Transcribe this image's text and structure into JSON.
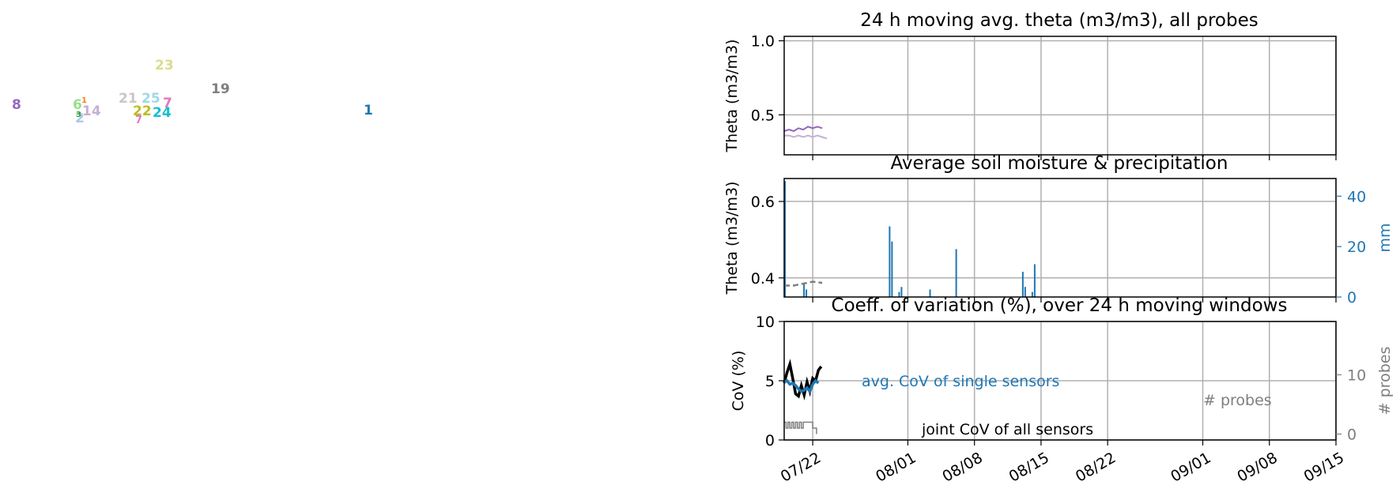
{
  "map": {
    "probes": [
      {
        "id": "8",
        "color": "#9467bd"
      },
      {
        "id": "6",
        "color": "#98df8a"
      },
      {
        "id": "1",
        "color": "#ff7f0e"
      },
      {
        "id": "14",
        "color": "#c5b0d5"
      },
      {
        "id": "2",
        "color": "#aec7e8"
      },
      {
        "id": "3",
        "color": "#2ca02c"
      },
      {
        "id": "21",
        "color": "#c7c7c7"
      },
      {
        "id": "25",
        "color": "#9edae5"
      },
      {
        "id": "7",
        "color": "#e377c2"
      },
      {
        "id": "22",
        "color": "#bcbd22"
      },
      {
        "id": "24",
        "color": "#17becf"
      },
      {
        "id": "23",
        "color": "#dbdb8d"
      },
      {
        "id": "19",
        "color": "#7f7f7f"
      },
      {
        "id": "1",
        "color": "#1f77b4"
      }
    ]
  },
  "chart_data": [
    {
      "type": "line",
      "title": "24 h moving avg. theta (m3/m3), all probes",
      "ylabel": "Theta (m3/m3)",
      "ylim": [
        0.23,
        1.03
      ],
      "yticks": [
        "0.5",
        "1.0"
      ],
      "xlim": [
        "07/19",
        "09/15"
      ],
      "grid": true,
      "series": [
        {
          "color": "#9467bd",
          "x": [
            "07/19 00:00",
            "07/19 12:00",
            "07/20 00:00",
            "07/20 12:00",
            "07/21 00:00",
            "07/21 12:00",
            "07/22 00:00",
            "07/22 12:00",
            "07/23 00:00"
          ],
          "values": [
            0.39,
            0.4,
            0.39,
            0.41,
            0.4,
            0.42,
            0.41,
            0.42,
            0.41
          ]
        },
        {
          "color": "#c5b0d5",
          "x": [
            "07/19 00:00",
            "07/19 12:00",
            "07/20 00:00",
            "07/20 12:00",
            "07/21 00:00",
            "07/21 12:00",
            "07/22 00:00",
            "07/22 12:00",
            "07/23 00:00",
            "07/23 12:00"
          ],
          "values": [
            0.36,
            0.36,
            0.35,
            0.36,
            0.35,
            0.36,
            0.35,
            0.36,
            0.35,
            0.34
          ]
        }
      ]
    },
    {
      "type": "bar",
      "title": "Average soil moisture & precipitation",
      "ylabel": "Theta (m3/m3)",
      "ylabel_right": "mm",
      "ylim": [
        0.35,
        0.66
      ],
      "yticks": [
        "0.4",
        "0.6"
      ],
      "ylim_right": [
        0,
        47
      ],
      "yticks_right": [
        "0",
        "20",
        "40"
      ],
      "grid": true,
      "theta_avg": {
        "x": [
          "07/19",
          "07/20",
          "07/21",
          "07/22",
          "07/23"
        ],
        "values": [
          0.38,
          0.38,
          0.385,
          0.39,
          0.387
        ]
      },
      "precip_mm": {
        "x": [
          "07/19",
          "07/21",
          "07/21",
          "07/30",
          "07/30",
          "07/31",
          "07/31",
          "08/03",
          "08/06",
          "08/13",
          "08/13",
          "08/14",
          "08/14"
        ],
        "values": [
          46,
          3,
          5,
          22,
          28,
          4,
          2,
          3,
          19,
          4,
          10,
          13,
          2
        ]
      }
    },
    {
      "type": "line",
      "title": "Coeff. of variation (%), over 24 h moving windows",
      "ylabel": "CoV (%)",
      "ylabel_right": "# probes",
      "ylim": [
        0,
        10
      ],
      "yticks": [
        "0",
        "5",
        "10"
      ],
      "ylim_right": [
        -1,
        19
      ],
      "yticks_right": [
        "0",
        "10"
      ],
      "xticks": [
        "07/22",
        "08/01",
        "08/08",
        "08/15",
        "08/22",
        "09/01",
        "09/08",
        "09/15"
      ],
      "grid": true,
      "annotations": {
        "avg": "avg. CoV of single sensors",
        "joint": "joint CoV of all sensors",
        "probes": "# probes"
      },
      "series": [
        {
          "name": "joint CoV of all sensors",
          "color": "#000000",
          "x": [
            0,
            0.3,
            0.6,
            0.9,
            1.2,
            1.5,
            1.8,
            2.1,
            2.4,
            2.7,
            3.0,
            3.3,
            3.6,
            3.9
          ],
          "values": [
            4.8,
            5.7,
            6.4,
            5.2,
            3.9,
            3.7,
            4.6,
            3.8,
            4.9,
            4.1,
            5.2,
            5.0,
            5.9,
            6.2
          ]
        },
        {
          "name": "avg. CoV of single sensors",
          "color": "#1f77b4",
          "x": [
            0,
            0.3,
            0.6,
            0.9,
            1.2,
            1.5,
            1.8,
            2.1,
            2.4,
            2.7,
            3.0,
            3.3,
            3.6
          ],
          "values": [
            4.9,
            5.0,
            4.7,
            4.8,
            4.6,
            4.3,
            4.1,
            4.2,
            4.4,
            4.1,
            4.7,
            5.0,
            4.8
          ]
        },
        {
          "name": "# probes",
          "color": "#7f7f7f",
          "x": [
            0,
            0.2,
            0.4,
            0.6,
            0.8,
            1.0,
            1.2,
            1.4,
            1.6,
            1.8,
            2.0,
            2.4,
            2.8,
            3.0,
            3.2,
            3.4
          ],
          "values": [
            2,
            1,
            2,
            1,
            2,
            1,
            2,
            1,
            2,
            1,
            2,
            2,
            2,
            1,
            1,
            0
          ]
        }
      ]
    }
  ]
}
